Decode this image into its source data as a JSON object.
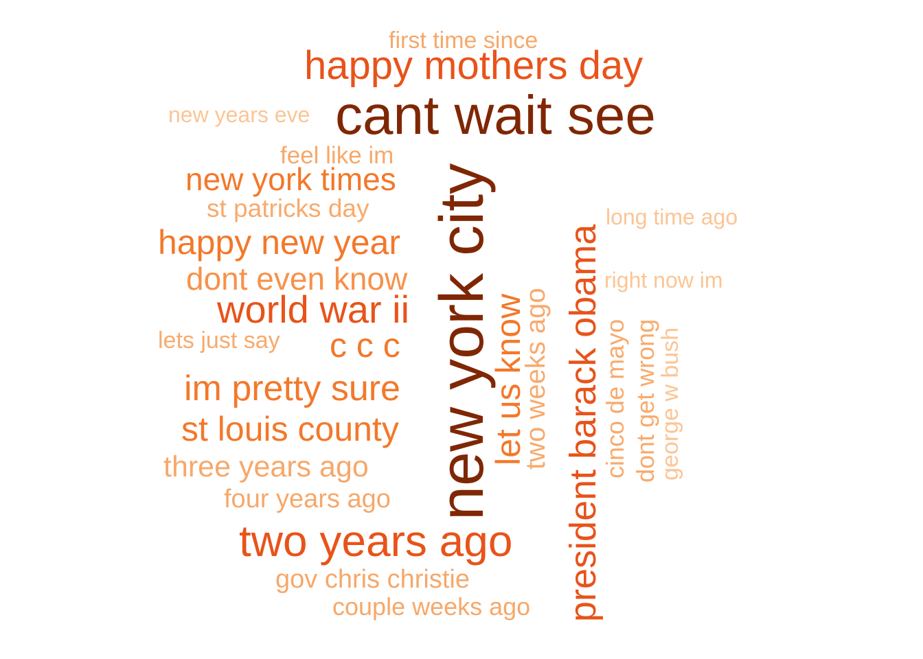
{
  "phrases": [
    {
      "id": "first-time-since",
      "text": "first time since",
      "color": "#f6a86a"
    },
    {
      "id": "happy-mothers-day",
      "text": "happy mothers day",
      "color": "#e8531a"
    },
    {
      "id": "new-years-eve",
      "text": "new years eve",
      "color": "#fbc595"
    },
    {
      "id": "cant-wait-see",
      "text": "cant wait see",
      "color": "#7f2704"
    },
    {
      "id": "feel-like-im",
      "text": "feel like im",
      "color": "#f6a86a"
    },
    {
      "id": "new-york-times",
      "text": "new york times",
      "color": "#f3782a"
    },
    {
      "id": "st-patricks-day",
      "text": "st patricks day",
      "color": "#f8aa6c"
    },
    {
      "id": "long-time-ago",
      "text": "long time ago",
      "color": "#fbc595"
    },
    {
      "id": "happy-new-year",
      "text": "happy new year",
      "color": "#f3782a"
    },
    {
      "id": "dont-even-know",
      "text": "dont even know",
      "color": "#f6924a"
    },
    {
      "id": "right-now-im",
      "text": "right now im",
      "color": "#fbc595"
    },
    {
      "id": "world-war-ii",
      "text": "world war ii",
      "color": "#e8531a"
    },
    {
      "id": "lets-just-say",
      "text": "lets just say",
      "color": "#f8aa6c"
    },
    {
      "id": "c-c-c",
      "text": "c c c",
      "color": "#f3782a"
    },
    {
      "id": "im-pretty-sure",
      "text": "im pretty sure",
      "color": "#f3782a"
    },
    {
      "id": "st-louis-county",
      "text": "st louis county",
      "color": "#f3782a"
    },
    {
      "id": "three-years-ago",
      "text": "three years ago",
      "color": "#f6a86a"
    },
    {
      "id": "four-years-ago",
      "text": "four years ago",
      "color": "#f6a86a"
    },
    {
      "id": "two-years-ago",
      "text": "two years ago",
      "color": "#e8531a"
    },
    {
      "id": "gov-chris-christie",
      "text": "gov chris christie",
      "color": "#f6a86a"
    },
    {
      "id": "couple-weeks-ago",
      "text": "couple weeks ago",
      "color": "#f6a86a"
    },
    {
      "id": "new-york-city",
      "text": "new york city",
      "color": "#7f2704"
    },
    {
      "id": "let-us-know",
      "text": "let us know",
      "color": "#f3782a"
    },
    {
      "id": "two-weeks-ago",
      "text": "two weeks ago",
      "color": "#f8aa6c"
    },
    {
      "id": "president-barack-obama",
      "text": "president barack obama",
      "color": "#e8531a"
    },
    {
      "id": "cinco-de-mayo",
      "text": "cinco de mayo",
      "color": "#f8aa6c"
    },
    {
      "id": "dont-get-wrong",
      "text": "dont get wrong",
      "color": "#f8aa6c"
    },
    {
      "id": "george-w-bush",
      "text": "george w bush",
      "color": "#fbc595"
    }
  ]
}
